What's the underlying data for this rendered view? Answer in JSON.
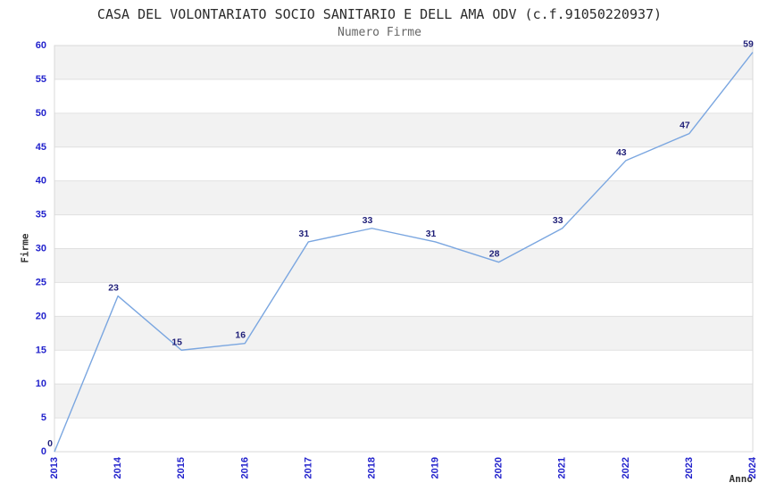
{
  "chart_data": {
    "type": "line",
    "title": "CASA DEL VOLONTARIATO SOCIO SANITARIO E DELL AMA ODV (c.f.91050220937)",
    "subtitle": "Numero Firme",
    "xlabel": "Anno",
    "ylabel": "Firme",
    "categories": [
      "2013",
      "2014",
      "2015",
      "2016",
      "2017",
      "2018",
      "2019",
      "2020",
      "2021",
      "2022",
      "2023",
      "2024"
    ],
    "series": [
      {
        "name": "Numero Firme",
        "values": [
          0,
          23,
          15,
          16,
          31,
          33,
          31,
          28,
          33,
          43,
          47,
          59
        ]
      }
    ],
    "ylim": [
      0,
      60
    ],
    "ytick_step": 5,
    "point_labels_visible": true,
    "grid": "horizontal-alternating-bands",
    "legend": "none",
    "colors": {
      "line": "#7aa6e0",
      "tick_label": "#2222cc",
      "point_label": "#1f1f78",
      "band": "#f2f2f2",
      "gridline": "#e0e0e0",
      "plot_border": "#d8d8d8",
      "title": "#2b2b2b",
      "subtitle": "#666666",
      "axis_title": "#333333",
      "background": "#ffffff"
    }
  }
}
